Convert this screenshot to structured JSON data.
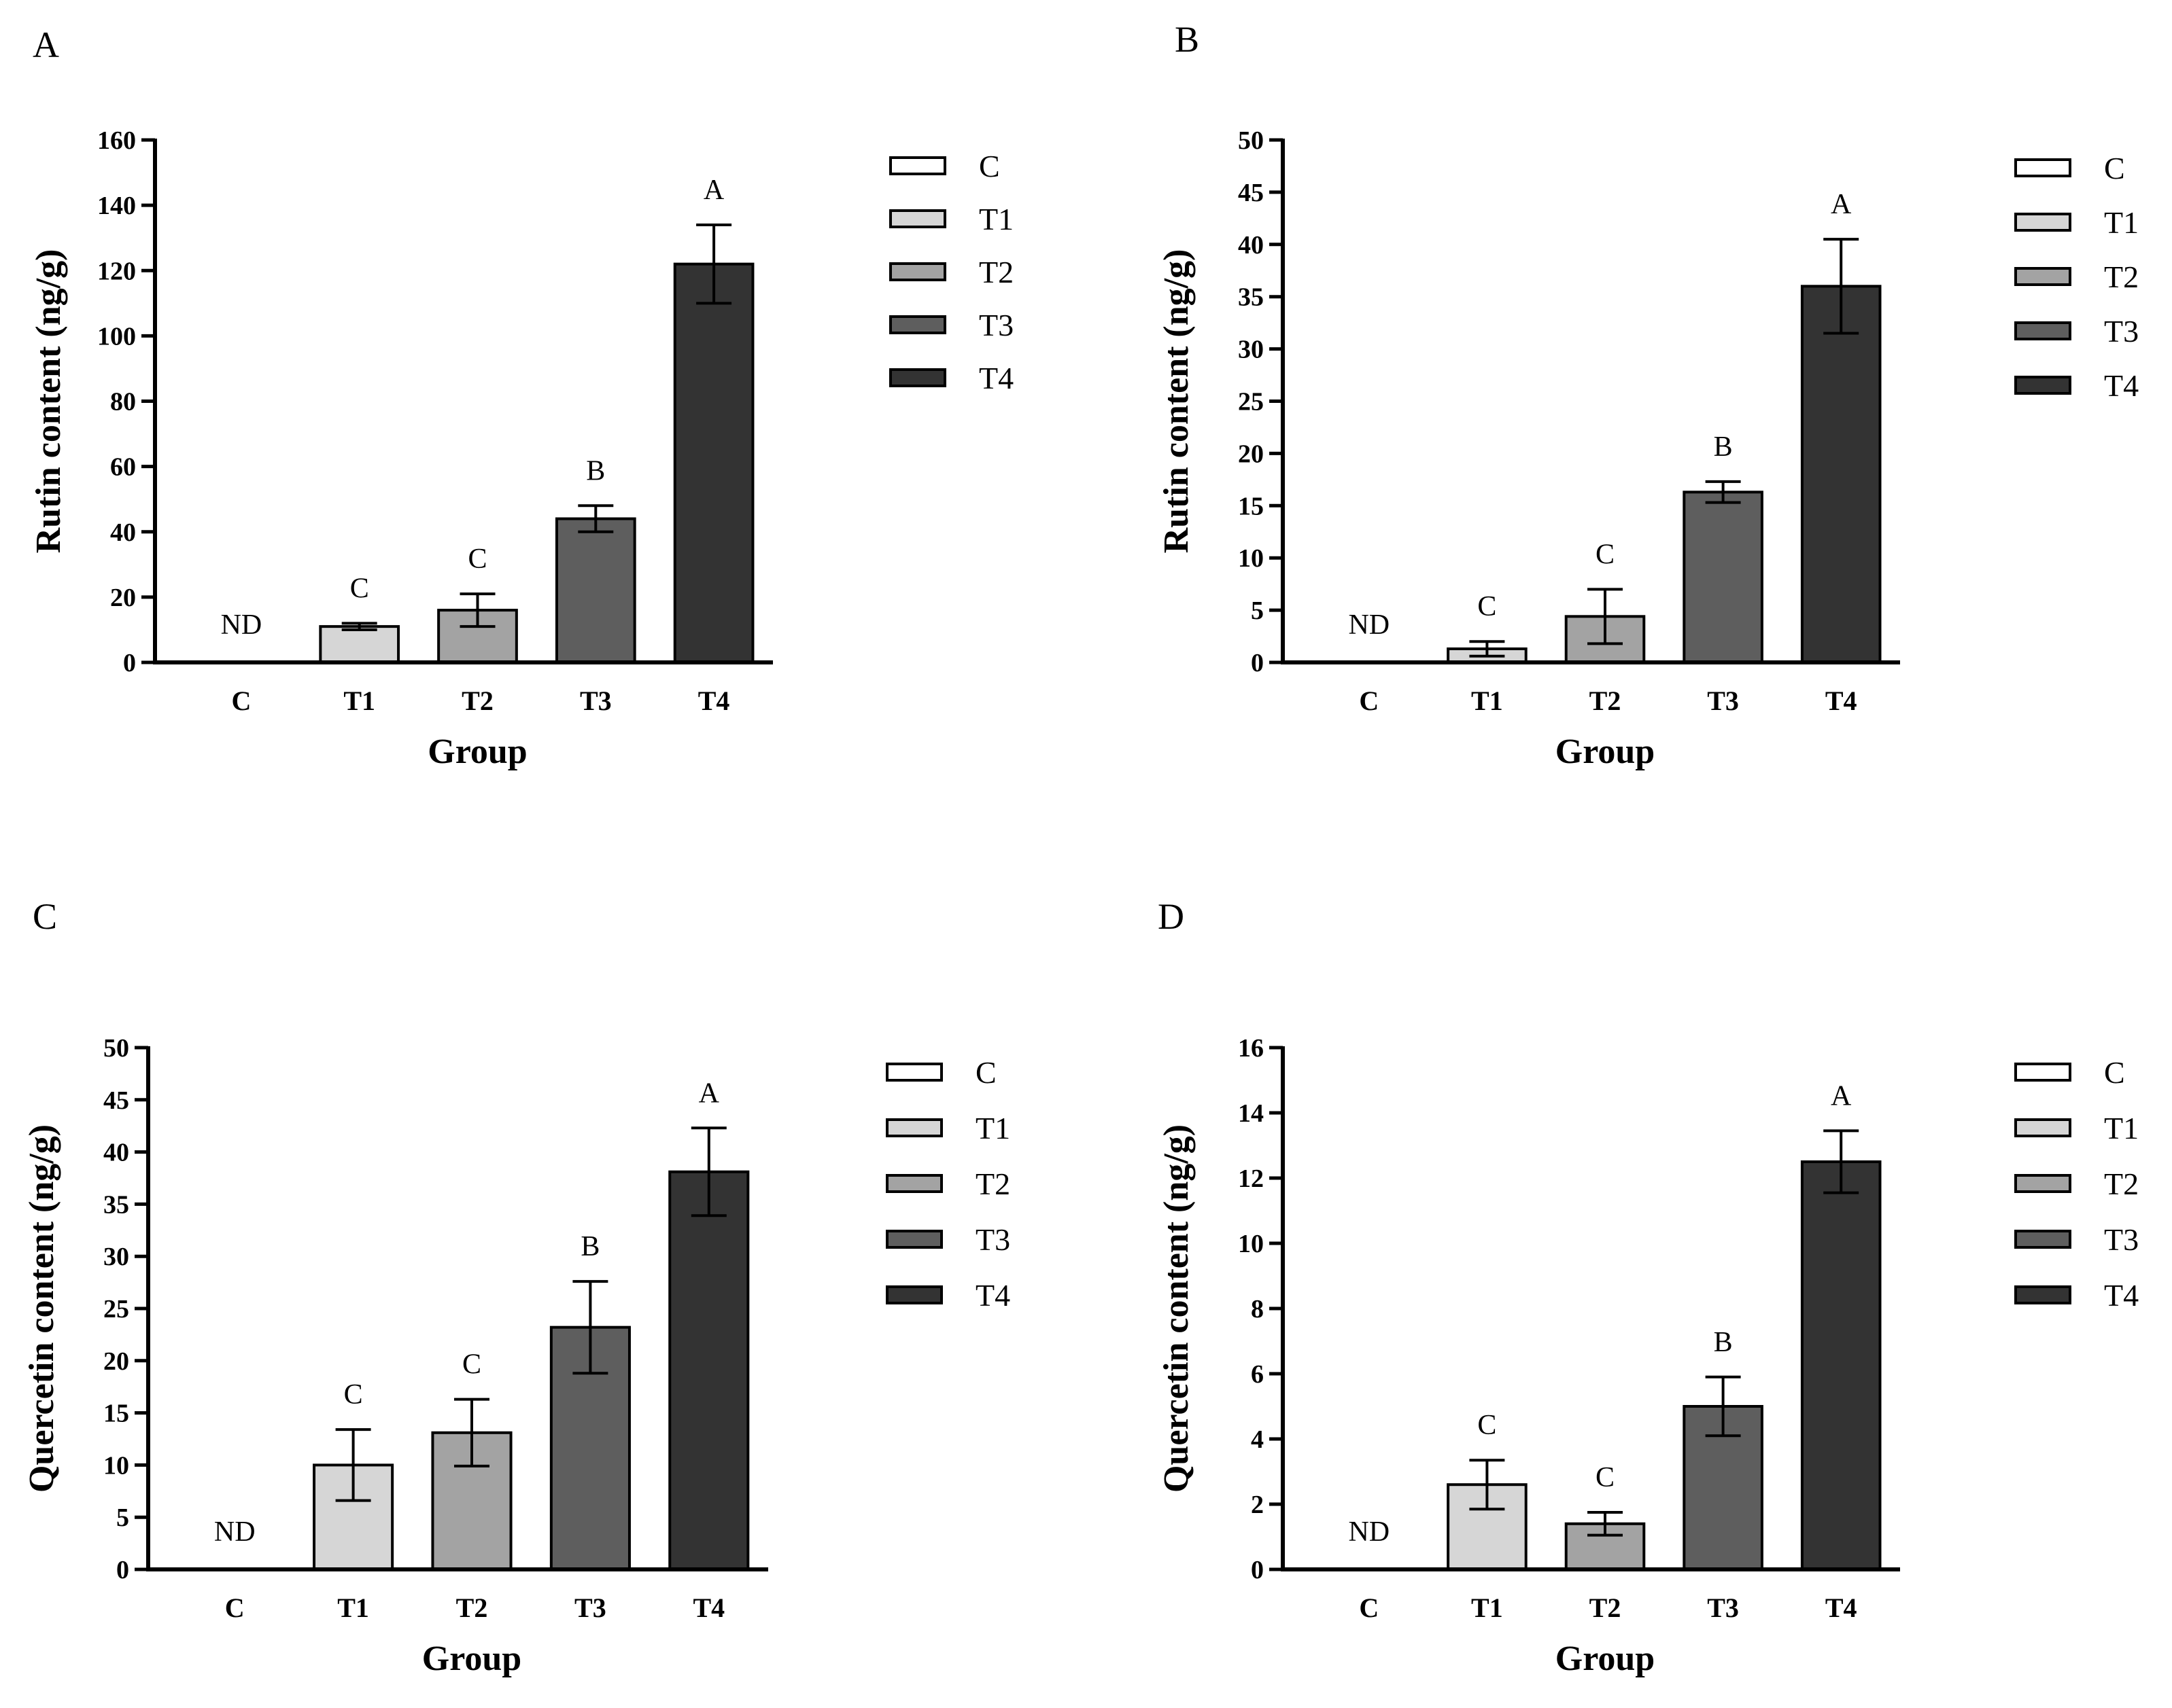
{
  "chart_data": [
    {
      "panel": "A",
      "type": "bar",
      "categories": [
        "C",
        "T1",
        "T2",
        "T3",
        "T4"
      ],
      "values": [
        0,
        11,
        16,
        44,
        122
      ],
      "errors": [
        0,
        1,
        5,
        4,
        12
      ],
      "annotations": [
        "ND",
        "C",
        "C",
        "B",
        "A"
      ],
      "xlabel": "Group",
      "ylabel": "Rutin content (ng/g)",
      "ylim": [
        0,
        160
      ],
      "yticks": [
        0,
        20,
        40,
        60,
        80,
        100,
        120,
        140,
        160
      ],
      "legend": [
        "C",
        "T1",
        "T2",
        "T3",
        "T4"
      ],
      "legend_position": "right"
    },
    {
      "panel": "B",
      "type": "bar",
      "categories": [
        "C",
        "T1",
        "T2",
        "T3",
        "T4"
      ],
      "values": [
        0,
        1.3,
        4.4,
        16.3,
        36
      ],
      "errors": [
        0,
        0.7,
        2.6,
        1,
        4.5
      ],
      "annotations": [
        "ND",
        "C",
        "C",
        "B",
        "A"
      ],
      "xlabel": "Group",
      "ylabel": "Rutin content (ng/g)",
      "ylim": [
        0,
        50
      ],
      "yticks": [
        0,
        5,
        10,
        15,
        20,
        25,
        30,
        35,
        40,
        45,
        50
      ],
      "legend": [
        "C",
        "T1",
        "T2",
        "T3",
        "T4"
      ],
      "legend_position": "right"
    },
    {
      "panel": "C",
      "type": "bar",
      "categories": [
        "C",
        "T1",
        "T2",
        "T3",
        "T4"
      ],
      "values": [
        0,
        10,
        13.1,
        23.2,
        38.1
      ],
      "errors": [
        0,
        3.4,
        3.2,
        4.4,
        4.2
      ],
      "annotations": [
        "ND",
        "C",
        "C",
        "B",
        "A"
      ],
      "xlabel": "Group",
      "ylabel": "Quercetin content (ng/g)",
      "ylim": [
        0,
        50
      ],
      "yticks": [
        0,
        5,
        10,
        15,
        20,
        25,
        30,
        35,
        40,
        45,
        50
      ],
      "legend": [
        "C",
        "T1",
        "T2",
        "T3",
        "T4"
      ],
      "legend_position": "right"
    },
    {
      "panel": "D",
      "type": "bar",
      "categories": [
        "C",
        "T1",
        "T2",
        "T3",
        "T4"
      ],
      "values": [
        0,
        2.6,
        1.4,
        5,
        12.5
      ],
      "errors": [
        0,
        0.75,
        0.35,
        0.9,
        0.95
      ],
      "annotations": [
        "ND",
        "C",
        "C",
        "B",
        "A"
      ],
      "xlabel": "Group",
      "ylabel": "Quercetin content (ng/g)",
      "ylim": [
        0,
        16
      ],
      "yticks": [
        0,
        2,
        4,
        6,
        8,
        10,
        12,
        14,
        16
      ],
      "legend": [
        "C",
        "T1",
        "T2",
        "T3",
        "T4"
      ],
      "legend_position": "right"
    }
  ],
  "colors": {
    "C": "#ffffff",
    "T1": "#d6d6d6",
    "T2": "#a3a3a3",
    "T3": "#5e5e5e",
    "T4": "#333333",
    "stroke": "#000000"
  }
}
